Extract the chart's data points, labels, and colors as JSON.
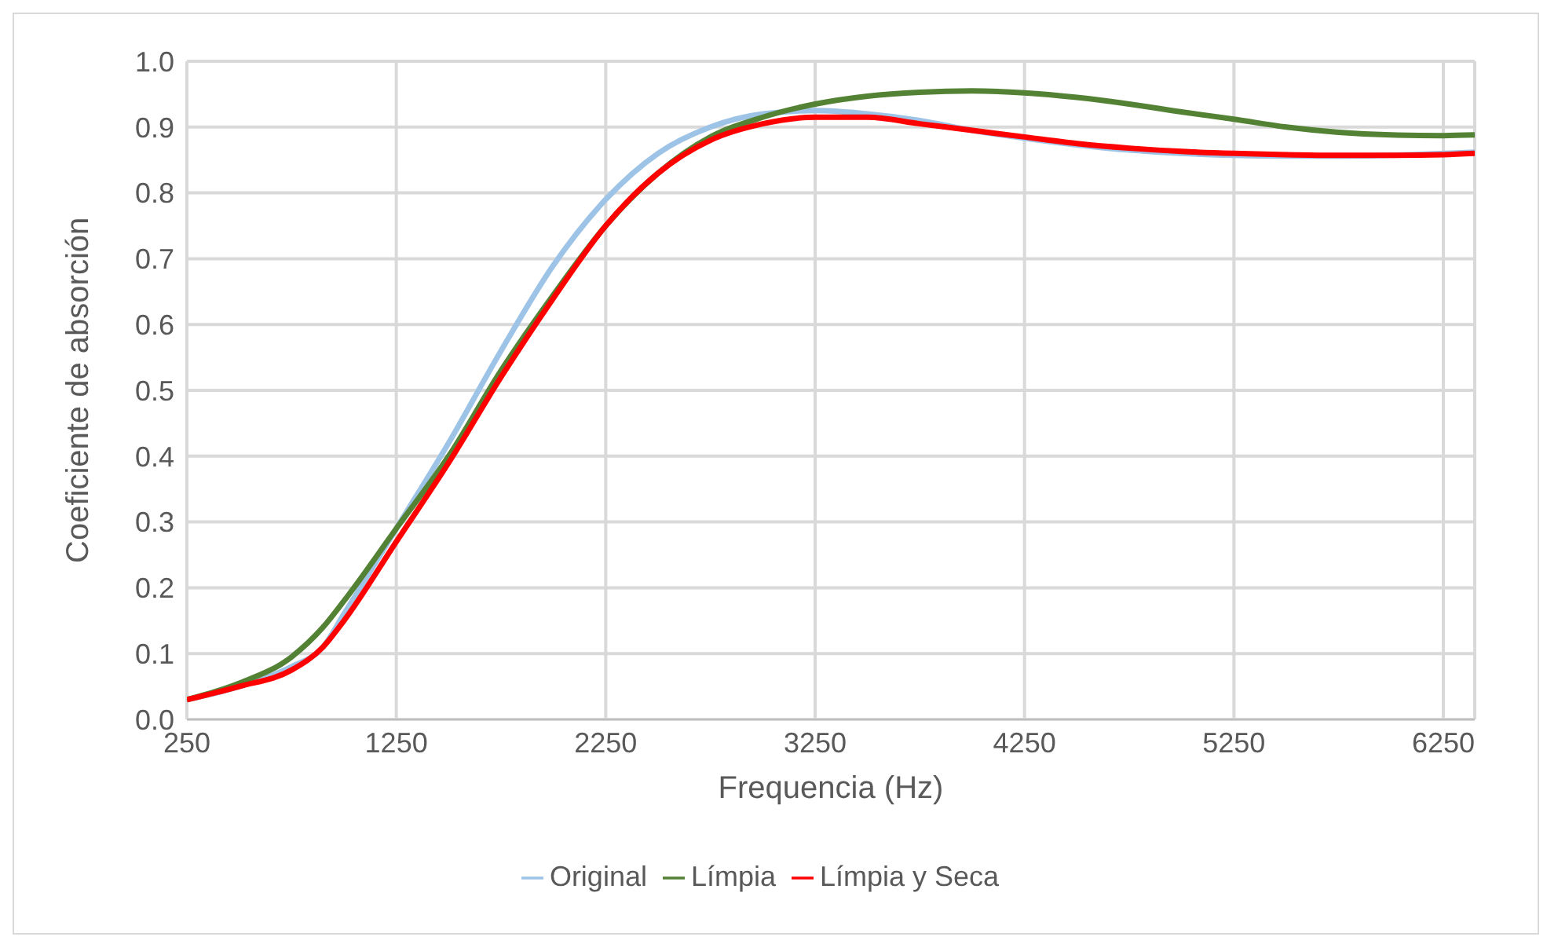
{
  "chart_data": {
    "type": "line",
    "xlabel": "Frequencia (Hz)",
    "ylabel": "Coeficiente de absorción",
    "x": [
      250,
      500,
      750,
      900,
      1000,
      1250,
      1500,
      1750,
      2000,
      2250,
      2500,
      2750,
      3000,
      3250,
      3500,
      3750,
      4000,
      4250,
      4500,
      4750,
      5000,
      5250,
      5500,
      5750,
      6000,
      6250,
      6400
    ],
    "series": [
      {
        "name": "Original",
        "color": "#9dc3e6",
        "values": [
          0.03,
          0.05,
          0.08,
          0.11,
          0.16,
          0.29,
          0.42,
          0.56,
          0.69,
          0.79,
          0.86,
          0.9,
          0.92,
          0.925,
          0.92,
          0.91,
          0.895,
          0.883,
          0.873,
          0.865,
          0.86,
          0.857,
          0.856,
          0.856,
          0.857,
          0.86,
          0.862
        ]
      },
      {
        "name": "Límpia",
        "color": "#548235",
        "values": [
          0.03,
          0.055,
          0.095,
          0.14,
          0.18,
          0.29,
          0.4,
          0.53,
          0.645,
          0.75,
          0.83,
          0.885,
          0.915,
          0.935,
          0.947,
          0.953,
          0.955,
          0.952,
          0.945,
          0.935,
          0.923,
          0.912,
          0.9,
          0.892,
          0.888,
          0.887,
          0.888
        ]
      },
      {
        "name": "Límpia y Seca",
        "color": "#ff0000",
        "values": [
          0.03,
          0.05,
          0.075,
          0.11,
          0.15,
          0.27,
          0.39,
          0.52,
          0.64,
          0.75,
          0.83,
          0.88,
          0.905,
          0.915,
          0.915,
          0.905,
          0.895,
          0.885,
          0.875,
          0.868,
          0.863,
          0.86,
          0.858,
          0.857,
          0.857,
          0.858,
          0.86
        ]
      }
    ],
    "xlim": [
      250,
      6400
    ],
    "xticks": [
      250,
      1250,
      2250,
      3250,
      4250,
      5250,
      6250
    ],
    "ylim": [
      0,
      1
    ],
    "yticks": [
      {
        "value": 0,
        "label": "0.0"
      },
      {
        "value": 0.1,
        "label": "0.1"
      },
      {
        "value": 0.2,
        "label": "0.2"
      },
      {
        "value": 0.3,
        "label": "0.3"
      },
      {
        "value": 0.4,
        "label": "0.4"
      },
      {
        "value": 0.5,
        "label": "0.5"
      },
      {
        "value": 0.6,
        "label": "0.6"
      },
      {
        "value": 0.7,
        "label": "0.7"
      },
      {
        "value": 0.8,
        "label": "0.8"
      },
      {
        "value": 0.9,
        "label": "0.9"
      },
      {
        "value": 1,
        "label": "1.0"
      }
    ],
    "grid": true,
    "legend": "bottom",
    "marker": "none",
    "line_style": "solid"
  }
}
